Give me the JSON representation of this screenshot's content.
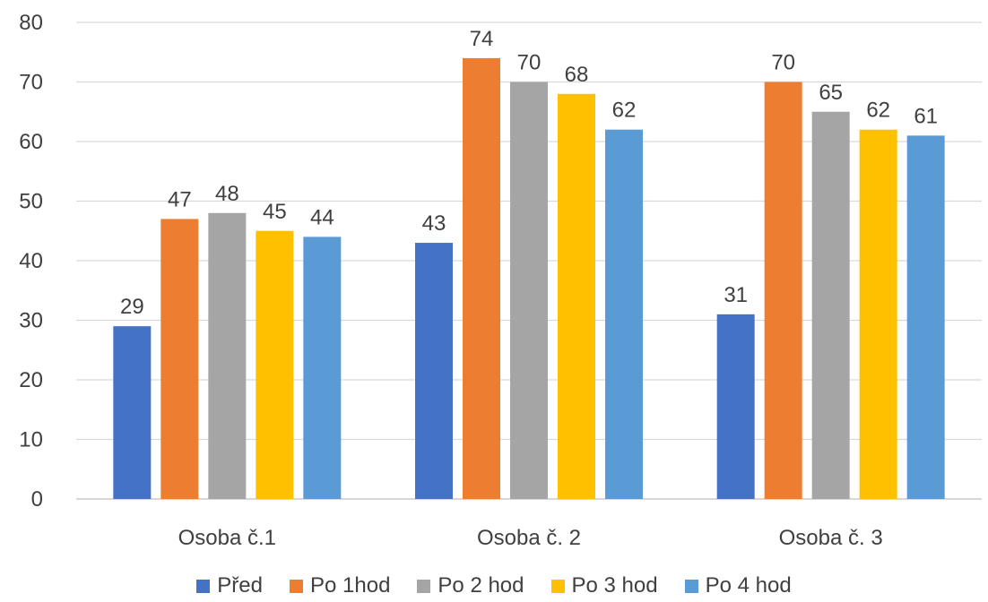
{
  "chart_data": {
    "type": "bar",
    "categories": [
      "Osoba č.1",
      "Osoba č. 2",
      "Osoba č. 3"
    ],
    "series": [
      {
        "name": "Před",
        "color": "#4472C4",
        "values": [
          29,
          43,
          31
        ]
      },
      {
        "name": "Po 1hod",
        "color": "#ED7D31",
        "values": [
          47,
          74,
          70
        ]
      },
      {
        "name": "Po 2 hod",
        "color": "#A5A5A5",
        "values": [
          48,
          70,
          65
        ]
      },
      {
        "name": "Po 3 hod",
        "color": "#FFC000",
        "values": [
          45,
          68,
          62
        ]
      },
      {
        "name": "Po 4 hod",
        "color": "#5B9BD5",
        "values": [
          44,
          62,
          61
        ]
      }
    ],
    "ylim": [
      0,
      80
    ],
    "yticks": [
      0,
      10,
      20,
      30,
      40,
      50,
      60,
      70,
      80
    ],
    "grid": true,
    "legend_position": "bottom",
    "data_labels": true,
    "title": "",
    "xlabel": "",
    "ylabel": ""
  }
}
